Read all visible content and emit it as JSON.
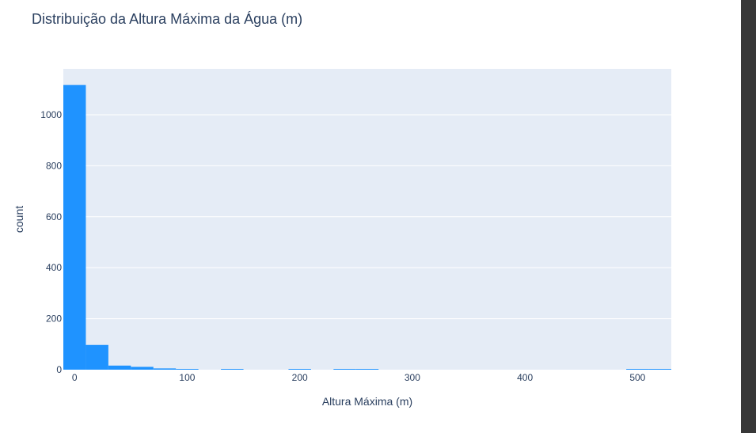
{
  "colors": {
    "bar": "#1f93ff",
    "plot_bg": "#e5ecf6",
    "grid": "#ffffff",
    "text": "#2a3f5f",
    "scrollbar": "#383838"
  },
  "chart_data": {
    "type": "bar",
    "title": "Distribuição da Altura Máxima da Água (m)",
    "xlabel": "Altura Máxima (m)",
    "ylabel": "count",
    "xlim": [
      -10,
      530
    ],
    "ylim": [
      0,
      1180
    ],
    "grid": true,
    "x_ticks": [
      0,
      100,
      200,
      300,
      400,
      500
    ],
    "y_ticks": [
      0,
      200,
      400,
      600,
      800,
      1000
    ],
    "bin_width": 20,
    "bins": [
      {
        "x0": -10,
        "x1": 10,
        "count": 1117
      },
      {
        "x0": 10,
        "x1": 30,
        "count": 97
      },
      {
        "x0": 30,
        "x1": 50,
        "count": 16
      },
      {
        "x0": 50,
        "x1": 70,
        "count": 11
      },
      {
        "x0": 70,
        "x1": 90,
        "count": 5
      },
      {
        "x0": 90,
        "x1": 110,
        "count": 2
      },
      {
        "x0": 130,
        "x1": 150,
        "count": 1
      },
      {
        "x0": 190,
        "x1": 210,
        "count": 1
      },
      {
        "x0": 230,
        "x1": 250,
        "count": 1
      },
      {
        "x0": 250,
        "x1": 270,
        "count": 1
      },
      {
        "x0": 490,
        "x1": 510,
        "count": 1
      },
      {
        "x0": 510,
        "x1": 530,
        "count": 1
      }
    ]
  }
}
